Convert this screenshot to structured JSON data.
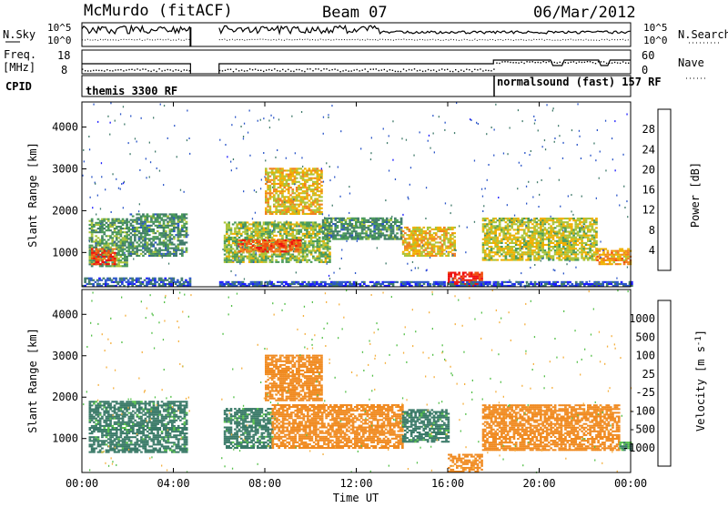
{
  "header": {
    "station": "McMurdo (fitACF)",
    "beam": "Beam 07",
    "date": "06/Mar/2012"
  },
  "noise_panel": {
    "left_label": "N.Sky",
    "right_label": "N.Search",
    "left_ticks": [
      "10^5",
      "10^0"
    ],
    "right_ticks": [
      "10^5",
      "10^0"
    ]
  },
  "freq_panel": {
    "left_label_line1": "Freq.",
    "left_label_line2": "[MHz]",
    "left_ticks": [
      "18",
      "8"
    ],
    "right_label": "Nave",
    "right_ticks": [
      "60",
      "0"
    ]
  },
  "cpid_panel": {
    "label": "CPID",
    "modes": [
      {
        "name": "themis 3300 RF",
        "start_hour": 0,
        "end_hour": 18
      },
      {
        "name": "normalsound (fast) 157 RF",
        "start_hour": 18,
        "end_hour": 24
      }
    ]
  },
  "colors": {
    "power_scale": [
      "#1a1aff",
      "#2a55c8",
      "#3f7a6a",
      "#4a9a58",
      "#a9c43a",
      "#f0b000",
      "#f08020",
      "#f05010",
      "#ee1010"
    ],
    "velocity_scale": [
      "#2a45c0",
      "#3b66b3",
      "#3a7a68",
      "#55c04a",
      "#c0c0b0",
      "#f5b040",
      "#f08a20",
      "#f06010",
      "#ee1515"
    ],
    "ground_scatter": "#b8b8b8"
  },
  "chart_data": [
    {
      "type": "heatmap",
      "panel": "power",
      "title": "",
      "xlabel": "Time UT",
      "ylabel": "Slant Range [km]",
      "xlim": [
        0,
        24
      ],
      "ylim": [
        180,
        4600
      ],
      "x_ticks": [
        "00:00",
        "04:00",
        "08:00",
        "12:00",
        "16:00",
        "20:00",
        "00:00"
      ],
      "y_ticks": [
        "1000",
        "2000",
        "3000",
        "4000"
      ],
      "colorbar": {
        "label": "Power [dB]",
        "ticks": [
          "4",
          "8",
          "12",
          "16",
          "20",
          "24",
          "28"
        ],
        "range": [
          0,
          30
        ]
      },
      "data_gap_hours": [
        4.75,
        6.0
      ],
      "echo_regions": [
        {
          "t0": 0.3,
          "t1": 2.0,
          "r_low": 650,
          "r_high": 1800,
          "level": 12
        },
        {
          "t0": 2.0,
          "t1": 4.6,
          "r_low": 900,
          "r_high": 1900,
          "level": 10
        },
        {
          "t0": 0.4,
          "t1": 1.4,
          "r_low": 700,
          "r_high": 1100,
          "level": 26
        },
        {
          "t0": 6.2,
          "t1": 10.8,
          "r_low": 750,
          "r_high": 1700,
          "level": 14
        },
        {
          "t0": 6.8,
          "t1": 9.5,
          "r_low": 1000,
          "r_high": 1300,
          "level": 24
        },
        {
          "t0": 8.0,
          "t1": 10.5,
          "r_low": 1900,
          "r_high": 3000,
          "level": 18
        },
        {
          "t0": 10.5,
          "t1": 14.0,
          "r_low": 1300,
          "r_high": 1800,
          "level": 10
        },
        {
          "t0": 14.0,
          "t1": 16.3,
          "r_low": 900,
          "r_high": 1600,
          "level": 18
        },
        {
          "t0": 16.0,
          "t1": 17.5,
          "r_low": 180,
          "r_high": 500,
          "level": 28
        },
        {
          "t0": 17.5,
          "t1": 22.5,
          "r_low": 800,
          "r_high": 1800,
          "level": 16
        },
        {
          "t0": 22.5,
          "t1": 24.0,
          "r_low": 700,
          "r_high": 1100,
          "level": 20
        },
        {
          "t0": 0.0,
          "t1": 4.7,
          "r_low": 180,
          "r_high": 400,
          "level": 6
        },
        {
          "t0": 6.0,
          "t1": 24.0,
          "r_low": 180,
          "r_high": 300,
          "level": 5
        }
      ]
    },
    {
      "type": "heatmap",
      "panel": "velocity",
      "title": "",
      "xlabel": "Time UT",
      "ylabel": "Slant Range [km]",
      "xlim": [
        0,
        24
      ],
      "ylim": [
        180,
        4600
      ],
      "x_ticks": [
        "00:00",
        "04:00",
        "08:00",
        "12:00",
        "16:00",
        "20:00",
        "00:00"
      ],
      "y_ticks": [
        "1000",
        "2000",
        "3000",
        "4000"
      ],
      "colorbar": {
        "label": "Velocity [m s^-1]",
        "ticks": [
          "1000",
          "500",
          "100",
          "25",
          "-25",
          "-100",
          "-500",
          "-1000"
        ]
      },
      "data_gap_hours": [
        4.75,
        6.0
      ],
      "echo_regions": [
        {
          "t0": 0.3,
          "t1": 4.6,
          "r_low": 650,
          "r_high": 1900,
          "velocity": 150
        },
        {
          "t0": 6.2,
          "t1": 8.3,
          "r_low": 750,
          "r_high": 1700,
          "velocity": 150
        },
        {
          "t0": 8.3,
          "t1": 14.0,
          "r_low": 750,
          "r_high": 1800,
          "velocity": -300
        },
        {
          "t0": 8.0,
          "t1": 10.5,
          "r_low": 1900,
          "r_high": 3000,
          "velocity": -200
        },
        {
          "t0": 14.0,
          "t1": 16.0,
          "r_low": 900,
          "r_high": 1700,
          "velocity": 150
        },
        {
          "t0": 16.0,
          "t1": 17.5,
          "r_low": 180,
          "r_high": 600,
          "velocity": -150
        },
        {
          "t0": 17.5,
          "t1": 23.5,
          "r_low": 700,
          "r_high": 1800,
          "velocity": -250
        },
        {
          "t0": 23.5,
          "t1": 24.0,
          "r_low": 700,
          "r_high": 900,
          "velocity": 100
        }
      ]
    }
  ]
}
